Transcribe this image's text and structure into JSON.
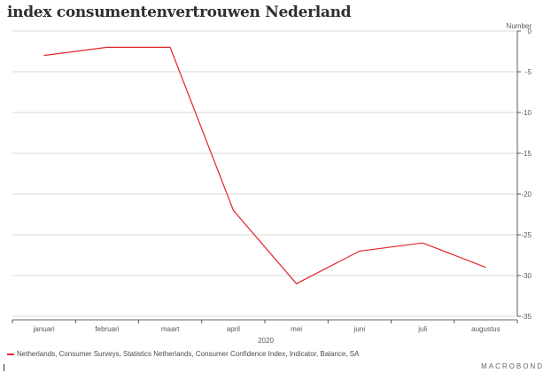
{
  "title": "index consumentenvertrouwen Nederland",
  "brand": "MACROBOND",
  "colors": {
    "series": "#e3242b",
    "grid": "#d9d9d9",
    "axis": "#333333"
  },
  "chart_data": {
    "type": "line",
    "title": "index consumentenvertrouwen Nederland",
    "unit_label": "Number",
    "x": [
      "januari",
      "februari",
      "maart",
      "april",
      "mei",
      "juni",
      "juli",
      "augustus"
    ],
    "x_group_label": "2020",
    "ylim": [
      -35,
      0
    ],
    "y_ticks": [
      0,
      -5,
      -10,
      -15,
      -20,
      -25,
      -30,
      -35
    ],
    "grid": true,
    "legend_position": "bottom-left",
    "series": [
      {
        "name": "Netherlands, Consumer Surveys, Statistics Netherlands, Consumer Confidence Index, Indicator, Balance, SA",
        "color": "#e3242b",
        "values": [
          -3,
          -2,
          -2,
          -22,
          -31,
          -27,
          -26,
          -29
        ]
      }
    ]
  }
}
